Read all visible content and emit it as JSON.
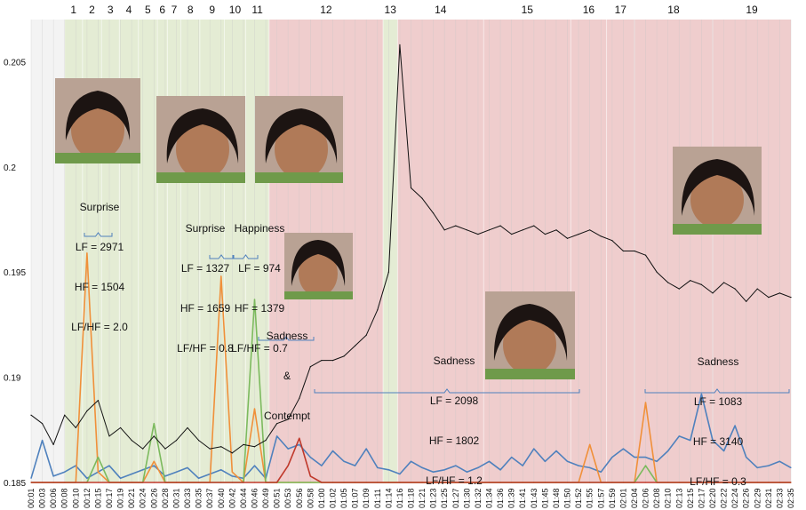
{
  "chart_data": {
    "type": "line",
    "ylim": [
      0.185,
      0.207
    ],
    "y_ticks": [
      "0.185",
      "0.19",
      "0.195",
      "0.2",
      "0.205"
    ],
    "x_tick_labels": [
      "00:01",
      "00:03",
      "00:06",
      "00:08",
      "00:10",
      "00:12",
      "00:15",
      "00:17",
      "00:19",
      "00:21",
      "00:24",
      "00:26",
      "00:28",
      "00:31",
      "00:33",
      "00:35",
      "00:37",
      "00:40",
      "00:42",
      "00:44",
      "00:46",
      "00:49",
      "00:51",
      "00:53",
      "00:56",
      "00:58",
      "01:00",
      "01:02",
      "01:05",
      "01:07",
      "01:09",
      "01:11",
      "01:14",
      "01:16",
      "01:18",
      "01:21",
      "01:23",
      "01:25",
      "01:27",
      "01:30",
      "01:32",
      "01:34",
      "01:36",
      "01:39",
      "01:41",
      "01:43",
      "01:45",
      "01:48",
      "01:50",
      "01:52",
      "01:55",
      "01:57",
      "01:59",
      "02:01",
      "02:04",
      "02:06",
      "02:08",
      "02:10",
      "02:13",
      "02:15",
      "02:17",
      "02:20",
      "02:22",
      "02:24",
      "02:26",
      "02:29",
      "02:31",
      "02:33",
      "02:35"
    ],
    "segments": [
      {
        "label": "1",
        "start": 3,
        "end": 4.6,
        "emotion": "positive"
      },
      {
        "label": "2",
        "start": 4.6,
        "end": 6.3,
        "emotion": "positive"
      },
      {
        "label": "3",
        "start": 6.3,
        "end": 7.9,
        "emotion": "positive"
      },
      {
        "label": "4",
        "start": 7.9,
        "end": 9.6,
        "emotion": "positive"
      },
      {
        "label": "5",
        "start": 9.6,
        "end": 11.3,
        "emotion": "positive"
      },
      {
        "label": "6",
        "start": 11.3,
        "end": 12.2,
        "emotion": "positive"
      },
      {
        "label": "7",
        "start": 12.2,
        "end": 13.4,
        "emotion": "positive"
      },
      {
        "label": "8",
        "start": 13.4,
        "end": 15.1,
        "emotion": "positive"
      },
      {
        "label": "9",
        "start": 15.1,
        "end": 17.3,
        "emotion": "positive"
      },
      {
        "label": "10",
        "start": 17.3,
        "end": 19.2,
        "emotion": "positive"
      },
      {
        "label": "11",
        "start": 19.2,
        "end": 21.3,
        "emotion": "positive"
      },
      {
        "label": "12",
        "start": 21.3,
        "end": 31.5,
        "emotion": "negative"
      },
      {
        "label": "13",
        "start": 31.5,
        "end": 32.8,
        "emotion": "positive"
      },
      {
        "label": "14",
        "start": 32.8,
        "end": 40.5,
        "emotion": "negative"
      },
      {
        "label": "15",
        "start": 40.5,
        "end": 48.3,
        "emotion": "negative"
      },
      {
        "label": "16",
        "start": 48.3,
        "end": 51.5,
        "emotion": "negative"
      },
      {
        "label": "17",
        "start": 51.5,
        "end": 54.0,
        "emotion": "negative"
      },
      {
        "label": "18",
        "start": 54.0,
        "end": 61.0,
        "emotion": "negative"
      },
      {
        "label": "19",
        "start": 61.0,
        "end": 68.0,
        "emotion": "negative"
      }
    ],
    "segment_colors": {
      "positive": "#e4ecd4",
      "negative": "#efcdcd"
    },
    "series": [
      {
        "name": "black-ratio",
        "color": "#111111",
        "values": [
          0.1882,
          0.1878,
          0.1868,
          0.1882,
          0.1876,
          0.1884,
          0.1889,
          0.1872,
          0.1876,
          0.187,
          0.1866,
          0.1872,
          0.1866,
          0.187,
          0.1876,
          0.187,
          0.1866,
          0.1867,
          0.1864,
          0.1868,
          0.1867,
          0.187,
          0.1878,
          0.188,
          0.189,
          0.1905,
          0.1908,
          0.1908,
          0.191,
          0.1915,
          0.192,
          0.1932,
          0.195,
          0.2058,
          0.199,
          0.1985,
          0.1978,
          0.197,
          0.1972,
          0.197,
          0.1968,
          0.197,
          0.1972,
          0.1968,
          0.197,
          0.1972,
          0.1968,
          0.197,
          0.1966,
          0.1968,
          0.197,
          0.1967,
          0.1965,
          0.196,
          0.196,
          0.1958,
          0.195,
          0.1945,
          0.1942,
          0.1946,
          0.1944,
          0.194,
          0.1945,
          0.1942,
          0.1936,
          0.1942,
          0.1938,
          0.194,
          0.1938
        ]
      },
      {
        "name": "orange",
        "color": "#f0903a",
        "values": [
          0.185,
          0.185,
          0.185,
          0.185,
          0.185,
          0.1959,
          0.1855,
          0.185,
          0.185,
          0.185,
          0.185,
          0.186,
          0.185,
          0.185,
          0.185,
          0.185,
          0.185,
          0.1948,
          0.1855,
          0.185,
          0.1885,
          0.185,
          0.185,
          0.185,
          0.185,
          0.185,
          0.185,
          0.185,
          0.185,
          0.185,
          0.185,
          0.185,
          0.185,
          0.185,
          0.185,
          0.185,
          0.185,
          0.185,
          0.185,
          0.185,
          0.185,
          0.185,
          0.185,
          0.185,
          0.185,
          0.185,
          0.185,
          0.185,
          0.185,
          0.185,
          0.1868,
          0.185,
          0.185,
          0.185,
          0.185,
          0.1888,
          0.185,
          0.185,
          0.185,
          0.185,
          0.185,
          0.185,
          0.185,
          0.185,
          0.185,
          0.185,
          0.185,
          0.185,
          0.185
        ]
      },
      {
        "name": "green",
        "color": "#7cba5e",
        "values": [
          0.185,
          0.185,
          0.185,
          0.185,
          0.185,
          0.185,
          0.1862,
          0.185,
          0.185,
          0.185,
          0.185,
          0.1878,
          0.185,
          0.185,
          0.185,
          0.185,
          0.185,
          0.185,
          0.185,
          0.185,
          0.1937,
          0.185,
          0.185,
          0.185,
          0.185,
          0.185,
          0.185,
          0.185,
          0.185,
          0.185,
          0.185,
          0.185,
          0.185,
          0.185,
          0.185,
          0.185,
          0.185,
          0.185,
          0.185,
          0.185,
          0.185,
          0.185,
          0.185,
          0.185,
          0.185,
          0.185,
          0.185,
          0.185,
          0.185,
          0.185,
          0.185,
          0.185,
          0.185,
          0.185,
          0.185,
          0.1858,
          0.185,
          0.185,
          0.185,
          0.185,
          0.185,
          0.185,
          0.185,
          0.185,
          0.185,
          0.185,
          0.185,
          0.185,
          0.185
        ]
      },
      {
        "name": "red",
        "color": "#c0392b",
        "values": [
          0.185,
          0.185,
          0.185,
          0.185,
          0.185,
          0.185,
          0.185,
          0.185,
          0.185,
          0.185,
          0.185,
          0.185,
          0.185,
          0.185,
          0.185,
          0.185,
          0.185,
          0.185,
          0.185,
          0.185,
          0.185,
          0.185,
          0.185,
          0.1858,
          0.1871,
          0.1853,
          0.185,
          0.185,
          0.185,
          0.185,
          0.185,
          0.185,
          0.185,
          0.185,
          0.185,
          0.185,
          0.185,
          0.185,
          0.185,
          0.185,
          0.185,
          0.185,
          0.185,
          0.185,
          0.185,
          0.185,
          0.185,
          0.185,
          0.185,
          0.185,
          0.185,
          0.185,
          0.185,
          0.185,
          0.185,
          0.185,
          0.185,
          0.185,
          0.185,
          0.185,
          0.185,
          0.185,
          0.185,
          0.185,
          0.185,
          0.185,
          0.185,
          0.185,
          0.185
        ]
      },
      {
        "name": "blue",
        "color": "#4f81bd",
        "values": [
          0.1852,
          0.187,
          0.1853,
          0.1855,
          0.1858,
          0.1852,
          0.1855,
          0.1858,
          0.1852,
          0.1854,
          0.1856,
          0.1858,
          0.1853,
          0.1855,
          0.1857,
          0.1852,
          0.1854,
          0.1856,
          0.1853,
          0.1852,
          0.1858,
          0.1852,
          0.1872,
          0.1866,
          0.1868,
          0.1862,
          0.1858,
          0.1865,
          0.186,
          0.1858,
          0.1866,
          0.1857,
          0.1856,
          0.1854,
          0.186,
          0.1857,
          0.1855,
          0.1856,
          0.1858,
          0.1855,
          0.1857,
          0.186,
          0.1856,
          0.1862,
          0.1858,
          0.1866,
          0.186,
          0.1865,
          0.186,
          0.1858,
          0.1857,
          0.1855,
          0.1862,
          0.1866,
          0.1862,
          0.1862,
          0.186,
          0.1865,
          0.1872,
          0.187,
          0.1892,
          0.187,
          0.1865,
          0.1877,
          0.1862,
          0.1857,
          0.1858,
          0.186,
          0.1857
        ]
      }
    ],
    "annotations": [
      {
        "lines": [
          "Surprise",
          "LF = 2971",
          "HF = 1504",
          "LF/HF = 2.0"
        ]
      },
      {
        "lines": [
          "Surprise",
          "LF = 1327",
          "HF = 1659",
          "LF/HF = 0.8"
        ]
      },
      {
        "lines": [
          "Happiness",
          "LF = 974",
          "HF = 1379",
          "LF/HF = 0.7"
        ]
      },
      {
        "lines": [
          "Sadness",
          "&",
          "Contempt"
        ]
      },
      {
        "lines": [
          "Sadness",
          "LF = 2098",
          "HF = 1802",
          "LF/HF = 1.2"
        ]
      },
      {
        "lines": [
          "Sadness",
          "LF = 1083",
          "HF = 3140",
          "LF/HF = 0.3"
        ]
      }
    ]
  }
}
